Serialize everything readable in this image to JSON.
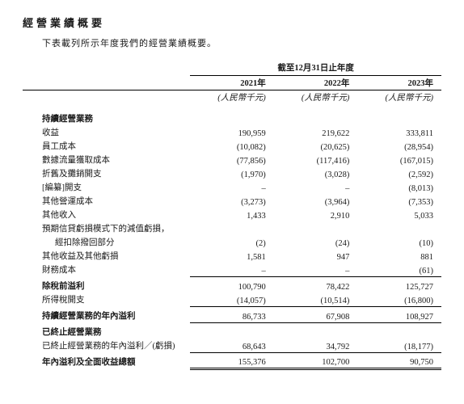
{
  "title": "經營業績概要",
  "subtitle": "下表載列所示年度我們的經營業績概要。",
  "period_caption": "截至12月31日止年度",
  "years": [
    "2021年",
    "2022年",
    "2023年"
  ],
  "unit": "(人民幣千元)",
  "rows": {
    "continuing_header": "持續經營業務",
    "revenue": {
      "label": "收益",
      "v": [
        "190,959",
        "219,622",
        "333,811"
      ]
    },
    "staff": {
      "label": "員工成本",
      "v": [
        "(10,082)",
        "(20,625)",
        "(28,954)"
      ]
    },
    "traffic": {
      "label": "數據流量獲取成本",
      "v": [
        "(77,856)",
        "(117,416)",
        "(167,015)"
      ]
    },
    "depr": {
      "label": "折舊及攤銷開支",
      "v": [
        "(1,970)",
        "(3,028)",
        "(2,592)"
      ]
    },
    "redacted": {
      "label": "[編纂]開支",
      "v": [
        "–",
        "–",
        "(8,013)"
      ]
    },
    "other_op": {
      "label": "其他營運成本",
      "v": [
        "(3,273)",
        "(3,964)",
        "(7,353)"
      ]
    },
    "other_inc": {
      "label": "其他收入",
      "v": [
        "1,433",
        "2,910",
        "5,033"
      ]
    },
    "ecl_hdr": "預期信貸虧損模式下的減值虧損，",
    "ecl_sub": {
      "label": "經扣除撥回部分",
      "v": [
        "(2)",
        "(24)",
        "(10)"
      ]
    },
    "other_gain": {
      "label": "其他收益及其他虧損",
      "v": [
        "1,581",
        "947",
        "881"
      ]
    },
    "finance": {
      "label": "財務成本",
      "v": [
        "–",
        "–",
        "(61)"
      ]
    },
    "pbt": {
      "label": "除稅前溢利",
      "v": [
        "100,790",
        "78,422",
        "125,727"
      ]
    },
    "tax": {
      "label": "所得稅開支",
      "v": [
        "(14,057)",
        "(10,514)",
        "(16,800)"
      ]
    },
    "cont_profit": {
      "label": "持續經營業務的年內溢利",
      "v": [
        "86,733",
        "67,908",
        "108,927"
      ]
    },
    "disc_header": "已終止經營業務",
    "disc_profit": {
      "label": "已終止經營業務的年內溢利／(虧損)",
      "v": [
        "68,643",
        "34,792",
        "(18,177)"
      ]
    },
    "total": {
      "label": "年內溢利及全面收益總額",
      "v": [
        "155,376",
        "102,700",
        "90,750"
      ]
    }
  },
  "colors": {
    "text": "#1a1a1a",
    "bg": "#ffffff",
    "border": "#000000"
  }
}
